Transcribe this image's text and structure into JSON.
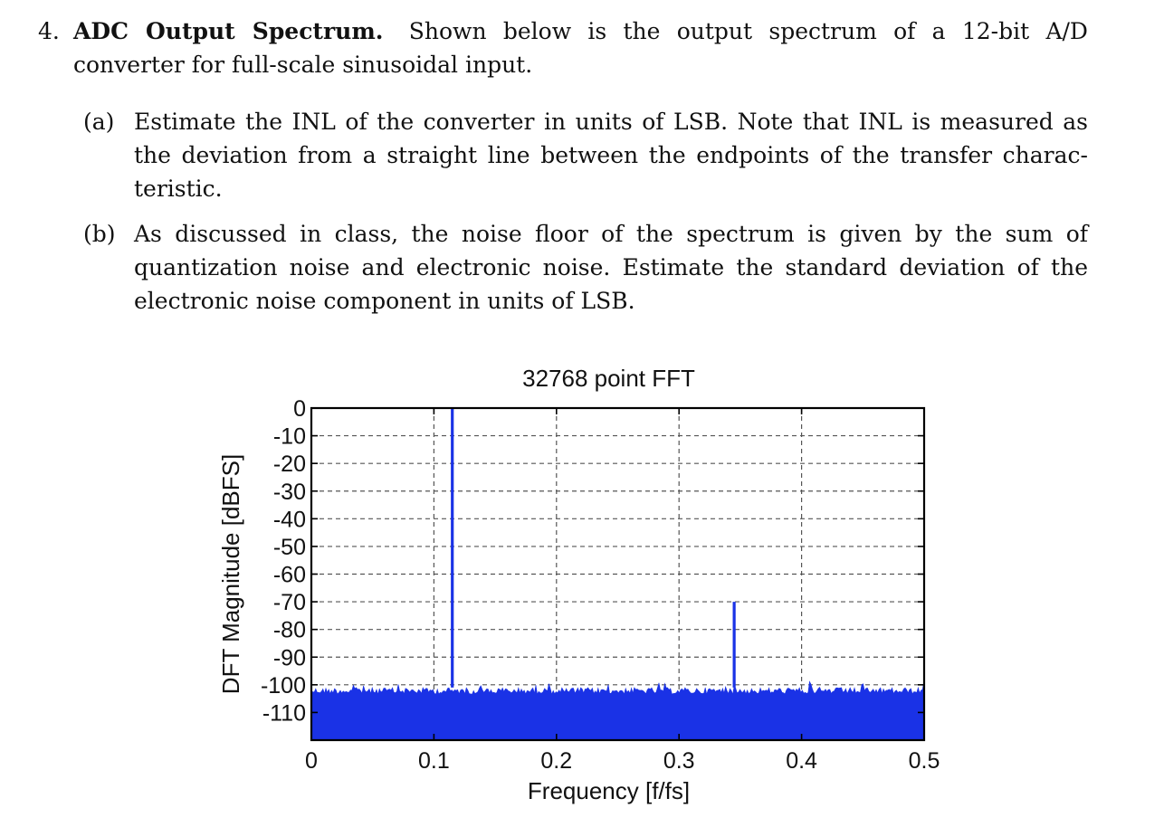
{
  "problem": {
    "number": "4.",
    "title": "ADC Output Spectrum.",
    "intro": "Shown below is the output spectrum of a 12-bit A/D converter for full-scale sinusoidal input."
  },
  "parts": [
    {
      "label": "(a)",
      "text": "Estimate the INL of the converter in units of LSB. Note that INL is measured as the deviation from a straight line between the endpoints of the transfer charac-teristic."
    },
    {
      "label": "(b)",
      "text": "As discussed in class, the noise floor of the spectrum is given by the sum of quantization noise and electronic noise. Estimate the standard deviation of the electronic noise component in units of LSB."
    }
  ],
  "colors": {
    "trace": "#1a32e6",
    "grid": "#555555",
    "axis": "#000000"
  },
  "chart_data": {
    "type": "line",
    "title": "32768 point FFT",
    "xlabel": "Frequency [f/fs]",
    "ylabel": "DFT Magnitude [dBFS]",
    "xlim": [
      0,
      0.5
    ],
    "ylim": [
      -120,
      0
    ],
    "x_ticks": [
      "0",
      "0.1",
      "0.2",
      "0.3",
      "0.4",
      "0.5"
    ],
    "y_ticks": [
      "0",
      "-10",
      "-20",
      "-30",
      "-40",
      "-50",
      "-60",
      "-70",
      "-80",
      "-90",
      "-100",
      "-110"
    ],
    "grid": true,
    "noise_floor_top_dbfs": -101,
    "spurs": [
      {
        "x": 0.115,
        "y": 0
      },
      {
        "x": 0.345,
        "y": -70
      }
    ]
  }
}
